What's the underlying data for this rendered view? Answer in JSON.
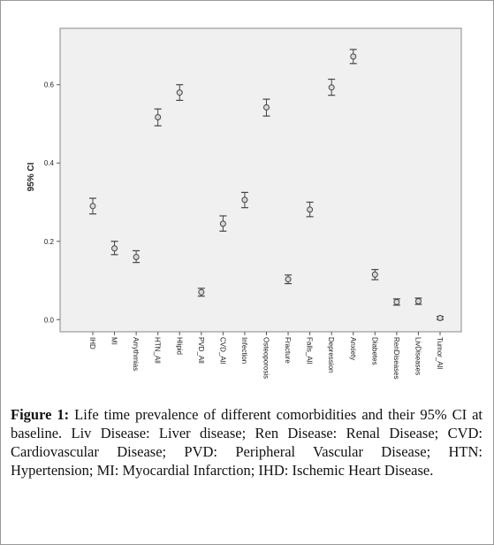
{
  "chart_data": {
    "type": "errorbar",
    "ylabel": "95% CI",
    "categories": [
      "IHD",
      "MI",
      "Arrythmias",
      "HTN_All",
      "Hlipid",
      "PVD_All",
      "CVD_All",
      "Infection",
      "Osteoporosis",
      "Fracture",
      "Falls_All",
      "Depression",
      "Anxiety",
      "Diabetes",
      "RenDiseases",
      "LivDiseases",
      "Tumor_All"
    ],
    "values": [
      0.29,
      0.182,
      0.16,
      0.517,
      0.58,
      0.07,
      0.245,
      0.306,
      0.542,
      0.103,
      0.281,
      0.593,
      0.672,
      0.115,
      0.045,
      0.047,
      0.004
    ],
    "lower": [
      0.27,
      0.166,
      0.146,
      0.495,
      0.56,
      0.06,
      0.226,
      0.286,
      0.52,
      0.092,
      0.263,
      0.573,
      0.654,
      0.102,
      0.037,
      0.039,
      0.0
    ],
    "upper": [
      0.31,
      0.2,
      0.176,
      0.538,
      0.6,
      0.08,
      0.265,
      0.325,
      0.563,
      0.114,
      0.3,
      0.614,
      0.69,
      0.128,
      0.053,
      0.055,
      0.008
    ],
    "color": "#444444",
    "ylim": [
      -0.031,
      0.744
    ],
    "yticks": [
      {
        "value": 0,
        "label": "0.0"
      },
      0.2,
      0.4,
      0.6
    ]
  },
  "caption": {
    "label": "Figure 1:",
    "text": "Life time prevalence of different comorbidities and their 95% CI at baseline. Liv Disease: Liver disease; Ren Disease: Renal Disease; CVD: Cardiovascular Disease; PVD: Peripheral Vascular Disease; HTN: Hypertension; MI: Myocardial Infarction; IHD: Ischemic Heart Disease."
  }
}
